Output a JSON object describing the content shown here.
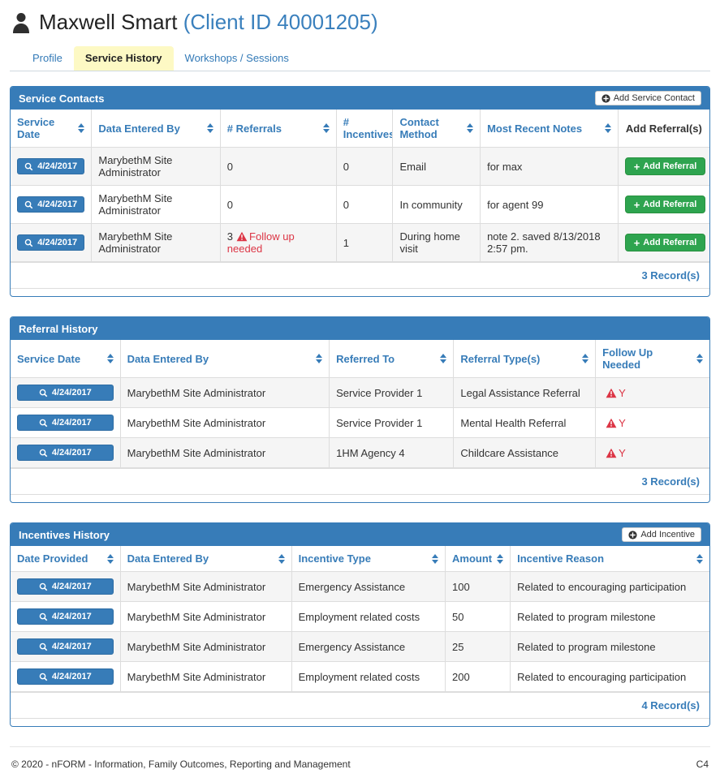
{
  "header": {
    "client_name": "Maxwell Smart",
    "client_id_text": "(Client ID 40001205)"
  },
  "tabs": [
    {
      "label": "Profile",
      "active": false
    },
    {
      "label": "Service History",
      "active": true
    },
    {
      "label": "Workshops / Sessions",
      "active": false
    }
  ],
  "colors": {
    "primary_blue": "#377cb8",
    "green": "#2ea44f",
    "warning_red": "#dc3545",
    "active_tab_bg": "#fdf9c4",
    "stripe": "#f5f5f5"
  },
  "service_contacts": {
    "title": "Service Contacts",
    "add_button_label": "Add Service Contact",
    "columns": [
      "Service Date",
      "Data Entered By",
      "# Referrals",
      "# Incentives",
      "Contact Method",
      "Most Recent Notes",
      "Add Referral(s)"
    ],
    "rows": [
      {
        "date": "4/24/2017",
        "entered_by": "MarybethM Site Administrator",
        "referrals": "0",
        "referrals_warning": "",
        "incentives": "0",
        "contact_method": "Email",
        "notes": "for max",
        "add_referral_label": "Add Referral"
      },
      {
        "date": "4/24/2017",
        "entered_by": "MarybethM Site Administrator",
        "referrals": "0",
        "referrals_warning": "",
        "incentives": "0",
        "contact_method": "In community",
        "notes": "for agent 99",
        "add_referral_label": "Add Referral"
      },
      {
        "date": "4/24/2017",
        "entered_by": "MarybethM Site Administrator",
        "referrals": "3",
        "referrals_warning": "Follow up needed",
        "incentives": "1",
        "contact_method": "During home visit",
        "notes": "note 2. saved 8/13/2018 2:57 pm.",
        "add_referral_label": "Add Referral"
      }
    ],
    "record_count": "3 Record(s)"
  },
  "referral_history": {
    "title": "Referral History",
    "columns": [
      "Service Date",
      "Data Entered By",
      "Referred To",
      "Referral Type(s)",
      "Follow Up Needed"
    ],
    "rows": [
      {
        "date": "4/24/2017",
        "entered_by": "MarybethM Site Administrator",
        "referred_to": "Service Provider 1",
        "referral_type": "Legal Assistance Referral",
        "follow_up": "Y"
      },
      {
        "date": "4/24/2017",
        "entered_by": "MarybethM Site Administrator",
        "referred_to": "Service Provider 1",
        "referral_type": "Mental Health Referral",
        "follow_up": "Y"
      },
      {
        "date": "4/24/2017",
        "entered_by": "MarybethM Site Administrator",
        "referred_to": "1HM Agency 4",
        "referral_type": "Childcare Assistance",
        "follow_up": "Y"
      }
    ],
    "record_count": "3 Record(s)"
  },
  "incentives_history": {
    "title": "Incentives History",
    "add_button_label": "Add Incentive",
    "columns": [
      "Date Provided",
      "Data Entered By",
      "Incentive Type",
      "Amount",
      "Incentive Reason"
    ],
    "rows": [
      {
        "date": "4/24/2017",
        "entered_by": "MarybethM Site Administrator",
        "incentive_type": "Emergency Assistance",
        "amount": "100",
        "reason": "Related to encouraging participation"
      },
      {
        "date": "4/24/2017",
        "entered_by": "MarybethM Site Administrator",
        "incentive_type": "Employment related costs",
        "amount": "50",
        "reason": "Related to program milestone"
      },
      {
        "date": "4/24/2017",
        "entered_by": "MarybethM Site Administrator",
        "incentive_type": "Emergency Assistance",
        "amount": "25",
        "reason": "Related to program milestone"
      },
      {
        "date": "4/24/2017",
        "entered_by": "MarybethM Site Administrator",
        "incentive_type": "Employment related costs",
        "amount": "200",
        "reason": "Related to encouraging participation"
      }
    ],
    "record_count": "4 Record(s)"
  },
  "footer": {
    "copyright": "© 2020 - nFORM - Information, Family Outcomes, Reporting and Management",
    "page_code": "C4"
  }
}
